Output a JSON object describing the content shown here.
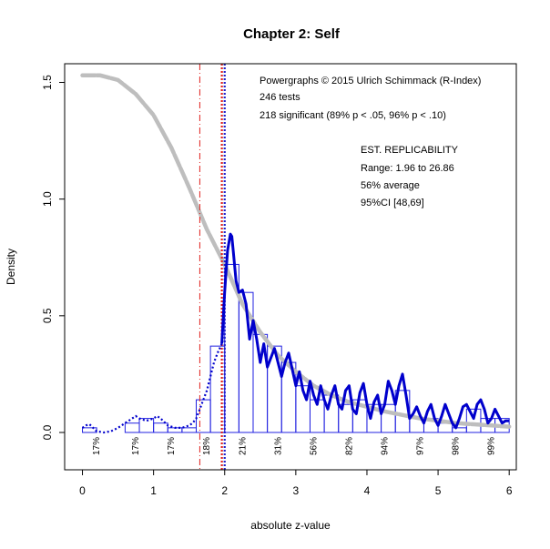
{
  "chart_data": {
    "type": "histogram-density",
    "title": "Chapter 2: Self",
    "xlabel": "absolute z-value",
    "ylabel": "Density",
    "xlim": [
      -0.25,
      6.1
    ],
    "ylim": [
      -0.16,
      1.58
    ],
    "x_ticks": [
      "0",
      "1",
      "2",
      "3",
      "4",
      "5",
      "6"
    ],
    "y_ticks": [
      "0.0",
      "0.5",
      "1.0",
      "1.5"
    ],
    "info_lines": [
      "Powergraphs © 2015 Ulrich Schimmack (R-Index)",
      "246 tests",
      "218 significant (89% p < .05, 96% p < .10)"
    ],
    "replicability": {
      "heading": "EST. REPLICABILITY",
      "range": "Range: 1.96 to 26.86",
      "average": "56% average",
      "ci": "95%CI [48,69]"
    },
    "histogram": {
      "bin_width": 0.2,
      "bins": [
        {
          "x0": 0.0,
          "density": 0.02
        },
        {
          "x0": 0.2,
          "density": 0.0
        },
        {
          "x0": 0.4,
          "density": 0.0
        },
        {
          "x0": 0.6,
          "density": 0.04
        },
        {
          "x0": 0.8,
          "density": 0.06
        },
        {
          "x0": 1.0,
          "density": 0.04
        },
        {
          "x0": 1.2,
          "density": 0.02
        },
        {
          "x0": 1.4,
          "density": 0.02
        },
        {
          "x0": 1.6,
          "density": 0.14
        },
        {
          "x0": 1.8,
          "density": 0.37
        },
        {
          "x0": 2.0,
          "density": 0.72
        },
        {
          "x0": 2.2,
          "density": 0.6
        },
        {
          "x0": 2.4,
          "density": 0.42
        },
        {
          "x0": 2.6,
          "density": 0.37
        },
        {
          "x0": 2.8,
          "density": 0.3
        },
        {
          "x0": 3.0,
          "density": 0.2
        },
        {
          "x0": 3.2,
          "density": 0.14
        },
        {
          "x0": 3.4,
          "density": 0.16
        },
        {
          "x0": 3.6,
          "density": 0.12
        },
        {
          "x0": 3.8,
          "density": 0.14
        },
        {
          "x0": 4.0,
          "density": 0.12
        },
        {
          "x0": 4.2,
          "density": 0.12
        },
        {
          "x0": 4.4,
          "density": 0.18
        },
        {
          "x0": 4.6,
          "density": 0.06
        },
        {
          "x0": 4.8,
          "density": 0.06
        },
        {
          "x0": 5.0,
          "density": 0.04
        },
        {
          "x0": 5.2,
          "density": 0.02
        },
        {
          "x0": 5.4,
          "density": 0.1
        },
        {
          "x0": 5.6,
          "density": 0.06
        },
        {
          "x0": 5.8,
          "density": 0.06
        }
      ]
    },
    "power_labels": [
      {
        "x": 0.2,
        "label": "17%"
      },
      {
        "x": 0.75,
        "label": "17%"
      },
      {
        "x": 1.25,
        "label": "17%"
      },
      {
        "x": 1.75,
        "label": "18%"
      },
      {
        "x": 2.25,
        "label": "21%"
      },
      {
        "x": 2.75,
        "label": "31%"
      },
      {
        "x": 3.25,
        "label": "56%"
      },
      {
        "x": 3.75,
        "label": "82%"
      },
      {
        "x": 4.25,
        "label": "94%"
      },
      {
        "x": 4.75,
        "label": "97%"
      },
      {
        "x": 5.25,
        "label": "98%"
      },
      {
        "x": 5.75,
        "label": "99%"
      }
    ],
    "density_solid": {
      "x": [
        1.96,
        2.0,
        2.04,
        2.08,
        2.1,
        2.12,
        2.16,
        2.2,
        2.25,
        2.3,
        2.35,
        2.4,
        2.45,
        2.5,
        2.55,
        2.6,
        2.65,
        2.7,
        2.75,
        2.8,
        2.85,
        2.9,
        2.95,
        3.0,
        3.05,
        3.1,
        3.15,
        3.2,
        3.25,
        3.3,
        3.35,
        3.4,
        3.45,
        3.5,
        3.55,
        3.6,
        3.65,
        3.7,
        3.75,
        3.8,
        3.85,
        3.9,
        3.95,
        4.0,
        4.05,
        4.1,
        4.15,
        4.2,
        4.25,
        4.3,
        4.35,
        4.4,
        4.45,
        4.5,
        4.55,
        4.6,
        4.65,
        4.7,
        4.75,
        4.8,
        4.85,
        4.9,
        4.95,
        5.0,
        5.05,
        5.1,
        5.15,
        5.2,
        5.25,
        5.3,
        5.35,
        5.4,
        5.45,
        5.5,
        5.55,
        5.6,
        5.65,
        5.7,
        5.75,
        5.8,
        5.85,
        5.9,
        5.95,
        6.0
      ],
      "y": [
        0.38,
        0.6,
        0.78,
        0.85,
        0.84,
        0.78,
        0.65,
        0.6,
        0.61,
        0.55,
        0.4,
        0.48,
        0.4,
        0.3,
        0.38,
        0.28,
        0.32,
        0.36,
        0.3,
        0.24,
        0.3,
        0.34,
        0.27,
        0.2,
        0.26,
        0.18,
        0.14,
        0.22,
        0.16,
        0.12,
        0.2,
        0.14,
        0.1,
        0.16,
        0.2,
        0.12,
        0.1,
        0.18,
        0.2,
        0.1,
        0.08,
        0.17,
        0.21,
        0.12,
        0.06,
        0.13,
        0.16,
        0.08,
        0.12,
        0.22,
        0.18,
        0.12,
        0.2,
        0.25,
        0.16,
        0.06,
        0.08,
        0.11,
        0.07,
        0.04,
        0.09,
        0.12,
        0.06,
        0.03,
        0.07,
        0.12,
        0.08,
        0.04,
        0.02,
        0.06,
        0.11,
        0.12,
        0.09,
        0.06,
        0.12,
        0.14,
        0.1,
        0.04,
        0.06,
        0.1,
        0.07,
        0.04,
        0.05,
        0.05
      ]
    },
    "density_dotted": {
      "x": [
        0.0,
        0.05,
        0.1,
        0.15,
        0.2,
        0.3,
        0.4,
        0.5,
        0.6,
        0.7,
        0.75,
        0.8,
        0.9,
        1.0,
        1.05,
        1.1,
        1.2,
        1.3,
        1.4,
        1.5,
        1.55,
        1.6,
        1.65,
        1.7,
        1.75,
        1.8,
        1.85,
        1.9,
        1.96
      ],
      "y": [
        0.02,
        0.03,
        0.035,
        0.02,
        0.005,
        0.0,
        0.005,
        0.02,
        0.04,
        0.06,
        0.07,
        0.06,
        0.05,
        0.06,
        0.07,
        0.06,
        0.03,
        0.02,
        0.02,
        0.03,
        0.04,
        0.06,
        0.1,
        0.14,
        0.18,
        0.24,
        0.3,
        0.34,
        0.38
      ]
    },
    "fit_curve": {
      "x": [
        0.0,
        0.25,
        0.5,
        0.75,
        1.0,
        1.25,
        1.5,
        1.75,
        2.0,
        2.25,
        2.5,
        2.75,
        3.0,
        3.25,
        3.5,
        3.75,
        4.0,
        4.25,
        4.5,
        4.75,
        5.0,
        5.25,
        5.5,
        5.75,
        6.0
      ],
      "y": [
        1.53,
        1.53,
        1.51,
        1.45,
        1.36,
        1.22,
        1.05,
        0.87,
        0.72,
        0.55,
        0.43,
        0.33,
        0.26,
        0.2,
        0.16,
        0.13,
        0.11,
        0.09,
        0.075,
        0.06,
        0.05,
        0.04,
        0.035,
        0.03,
        0.025
      ]
    },
    "vlines": [
      {
        "x": 1.65,
        "color": "#e0201b",
        "style": "dashdot"
      },
      {
        "x": 1.96,
        "color": "#e0201b",
        "style": "dotted"
      },
      {
        "x": 2.0,
        "color": "#2222cc",
        "style": "dotted"
      }
    ],
    "colors": {
      "histogram": "#2020e0",
      "density": "#0000cc",
      "fit": "#bebebe",
      "frame": "#000000"
    }
  }
}
